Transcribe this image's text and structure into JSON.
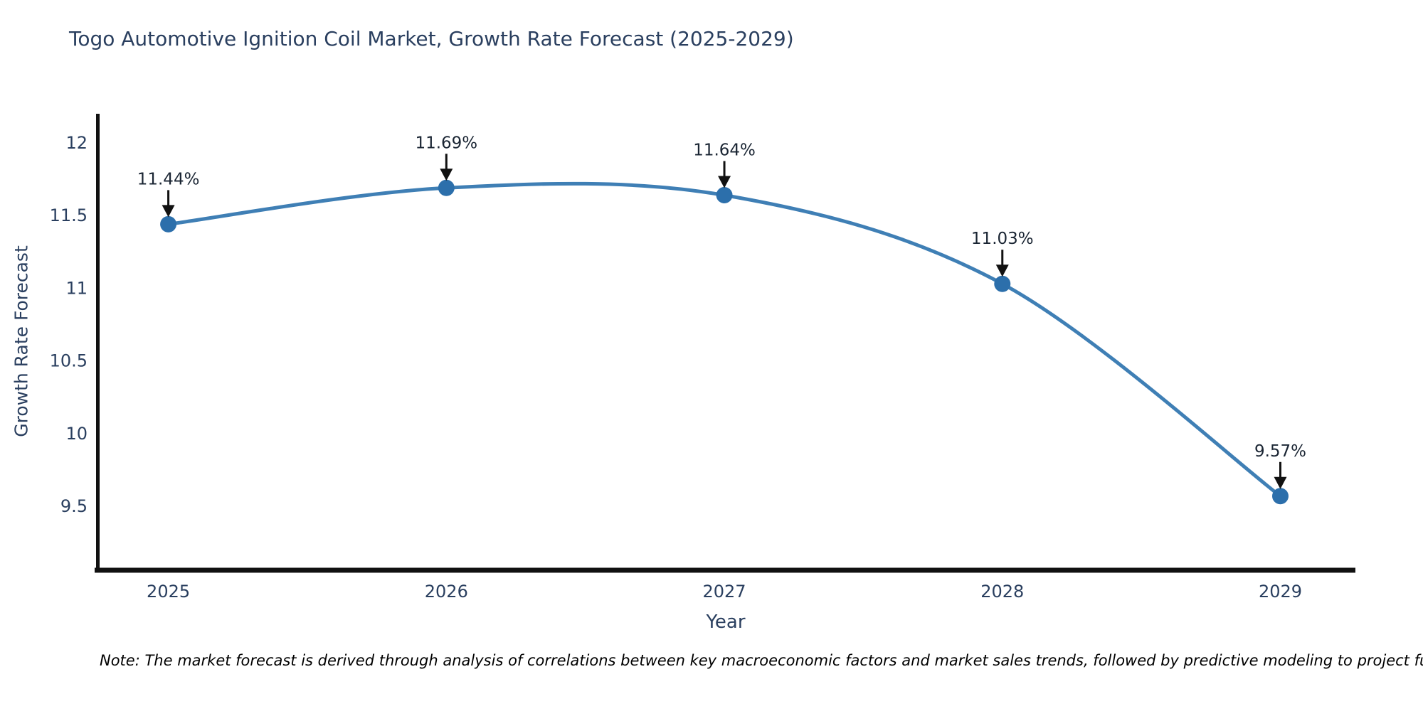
{
  "title": "Togo Automotive Ignition Coil Market, Growth Rate Forecast (2025-2029)",
  "note": "Note: The market forecast is derived through analysis of correlations between key macroeconomic factors and market sales trends, followed by predictive modeling to project future sal",
  "chart_data": {
    "type": "line",
    "title": "Togo Automotive Ignition Coil Market, Growth Rate Forecast (2025-2029)",
    "xlabel": "Year",
    "ylabel": "Growth Rate Forecast",
    "x": [
      2025,
      2026,
      2027,
      2028,
      2029
    ],
    "y": [
      11.44,
      11.69,
      11.64,
      11.03,
      9.57
    ],
    "point_labels": [
      "11.44%",
      "11.69%",
      "11.64%",
      "11.03%",
      "9.57%"
    ],
    "xtick_labels": [
      "2025",
      "2026",
      "2027",
      "2028",
      "2029"
    ],
    "ytick_values": [
      12,
      11.5,
      11,
      10.5,
      10,
      9.5
    ],
    "ytick_labels": [
      "12",
      "11.5",
      "11",
      "10.5",
      "10",
      "9.5"
    ],
    "xlim": [
      2024.74,
      2029.27
    ],
    "ylim": [
      9.07,
      12.2
    ],
    "grid": false,
    "legend": "none",
    "line_shape": "spline",
    "colors": {
      "line": "#3f7fb5",
      "marker": "#2c6fab",
      "axis": "#111111",
      "tick_text": "#2a3f5f",
      "annotation_text": "#1a2533",
      "annotation_arrow": "#111111",
      "title_text": "#2a3f5f"
    }
  }
}
